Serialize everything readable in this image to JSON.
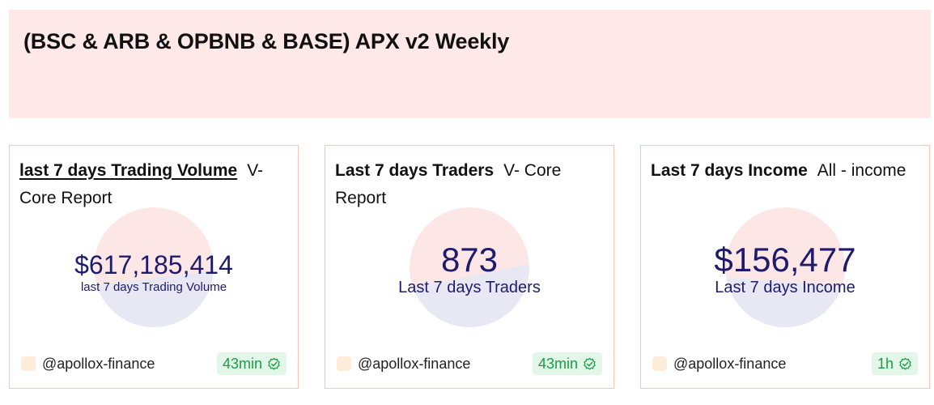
{
  "header": {
    "title": "(BSC & ARB & OPBNB & BASE) APX v2 Weekly"
  },
  "colors": {
    "header_bg": "#ffe9e8",
    "card_border": "#f4c6bc",
    "value_text": "#1e1b6e",
    "donut_top": "#fde7e6",
    "donut_bottom": "#e8e7f4",
    "badge_bg": "#e3f7e8",
    "badge_text": "#1e9a4a"
  },
  "cards": [
    {
      "title_strong": "last 7 days Trading Volume",
      "title_rest": "V- Core Report",
      "value": "$617,185,414",
      "sub_label": "last 7 days Trading Volume",
      "author": "@apollox-finance",
      "badge": "43min"
    },
    {
      "title_strong": "Last 7 days Traders",
      "title_rest": "V- Core Report",
      "value": "873",
      "sub_label": "Last 7 days Traders",
      "author": "@apollox-finance",
      "badge": "43min"
    },
    {
      "title_strong": "Last 7 days Income",
      "title_rest": "All - income",
      "value": "$156,477",
      "sub_label": "Last 7 days Income",
      "author": "@apollox-finance",
      "badge": "1h"
    }
  ]
}
